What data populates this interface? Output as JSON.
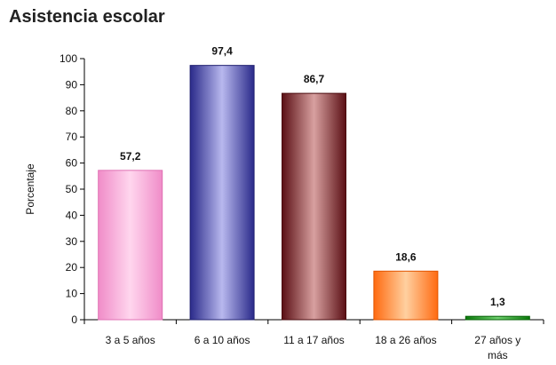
{
  "chart_data": {
    "type": "bar",
    "title": "Asistencia escolar",
    "xlabel": "",
    "ylabel": "Porcentaje",
    "ylim": [
      0,
      100
    ],
    "yticks": [
      0,
      10,
      20,
      30,
      40,
      50,
      60,
      70,
      80,
      90,
      100
    ],
    "categories": [
      [
        "3 a 5 años"
      ],
      [
        "6 a 10 años"
      ],
      [
        "11 a 17 años"
      ],
      [
        "18 a 26 años"
      ],
      [
        "27 años y",
        "más"
      ]
    ],
    "values": [
      57.2,
      97.4,
      86.7,
      18.6,
      1.3
    ],
    "value_labels": [
      "57,2",
      "97,4",
      "86,7",
      "18,6",
      "1,3"
    ],
    "bar_colors": [
      {
        "dark": "#f08cc8",
        "light": "#ffd6ee",
        "edge": "#e070b4"
      },
      {
        "dark": "#2a2a8a",
        "light": "#b8b8ee",
        "edge": "#202070"
      },
      {
        "dark": "#5a0f14",
        "light": "#d8a0a0",
        "edge": "#4a0a0e"
      },
      {
        "dark": "#ff6a10",
        "light": "#ffd0a0",
        "edge": "#e05500"
      },
      {
        "dark": "#0a7a0a",
        "light": "#70d070",
        "edge": "#066006"
      }
    ],
    "grid": false,
    "legend": "none"
  }
}
